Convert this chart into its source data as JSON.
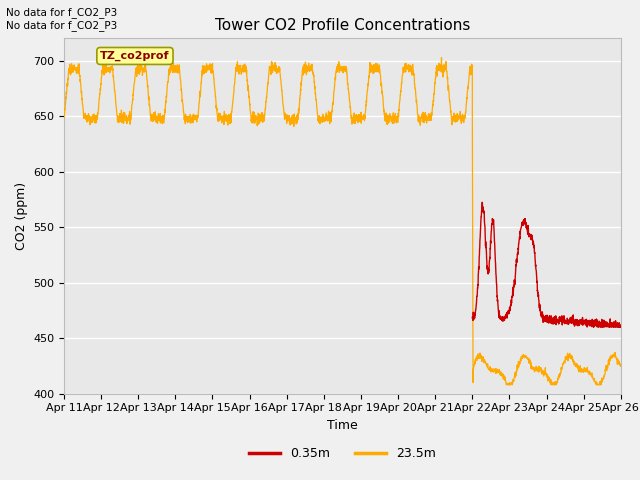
{
  "title": "Tower CO2 Profile Concentrations",
  "xlabel": "Time",
  "ylabel": "CO2 (ppm)",
  "ylim": [
    400,
    720
  ],
  "yticks": [
    400,
    450,
    500,
    550,
    600,
    650,
    700
  ],
  "bg_color": "#f0f0f0",
  "plot_bg": "#e8e8e8",
  "no_data_text1": "No data for f_CO2_P3",
  "no_data_text2": "No data for f_CO2_P3",
  "legend_label_red": "0.35m",
  "legend_label_orange": "23.5m",
  "legend_color_red": "#cc0000",
  "legend_color_orange": "#ffaa00",
  "watermark_text": "TZ_co2prof",
  "watermark_bg": "#ffff99",
  "watermark_border": "#999900",
  "x_label_days": [
    11,
    12,
    13,
    14,
    15,
    16,
    17,
    18,
    19,
    20,
    21,
    22,
    23,
    24,
    25,
    26
  ],
  "title_fontsize": 11,
  "axis_fontsize": 8,
  "label_fontsize": 9
}
